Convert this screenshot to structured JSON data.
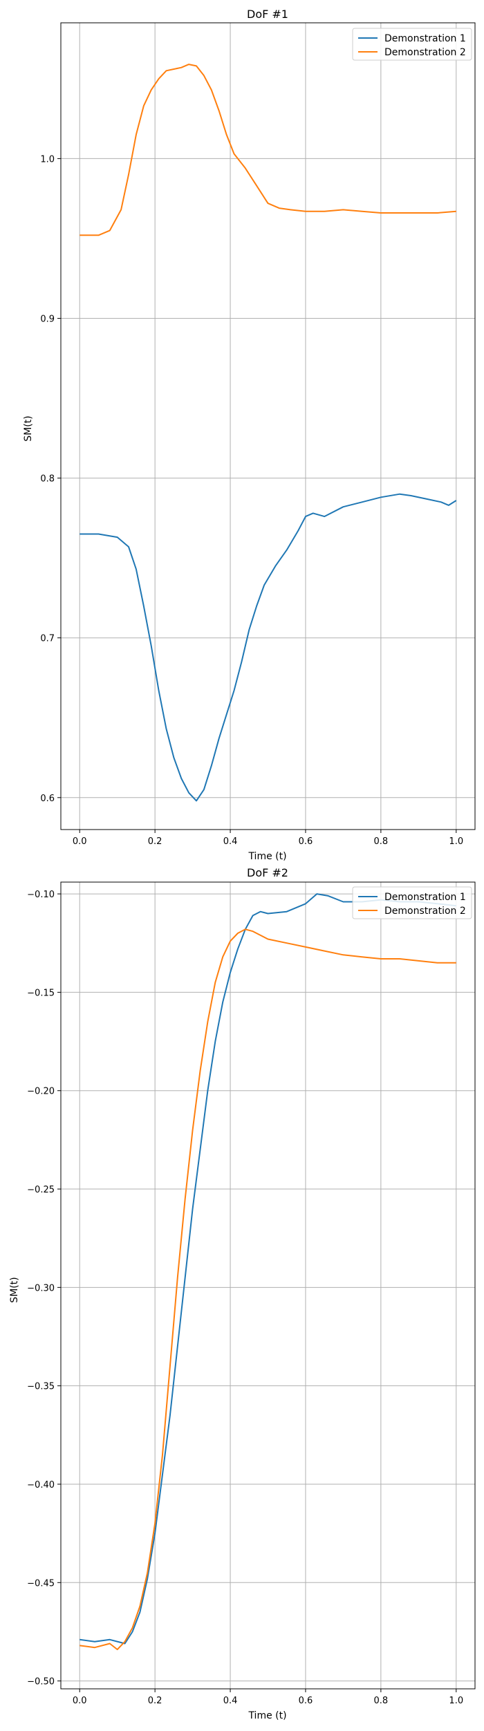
{
  "chart_data": [
    {
      "type": "line",
      "title": "DoF #1",
      "xlabel": "Time (t)",
      "ylabel": "SM(t)",
      "xlim": [
        -0.05,
        1.05
      ],
      "ylim": [
        0.58,
        1.085
      ],
      "xticks": [
        0.0,
        0.2,
        0.4,
        0.6,
        0.8,
        1.0
      ],
      "xtick_labels": [
        "0.0",
        "0.2",
        "0.4",
        "0.6",
        "0.8",
        "1.0"
      ],
      "yticks": [
        0.6,
        0.7,
        0.8,
        0.9,
        1.0
      ],
      "ytick_labels": [
        "0.6",
        "0.7",
        "0.8",
        "0.9",
        "1.0"
      ],
      "grid": true,
      "legend_position": "top-right",
      "series": [
        {
          "name": "Demonstration 1",
          "color": "#1f77b4",
          "x": [
            0.0,
            0.05,
            0.1,
            0.13,
            0.15,
            0.17,
            0.19,
            0.21,
            0.23,
            0.25,
            0.27,
            0.29,
            0.31,
            0.33,
            0.35,
            0.37,
            0.39,
            0.41,
            0.43,
            0.45,
            0.47,
            0.49,
            0.52,
            0.55,
            0.58,
            0.6,
            0.62,
            0.65,
            0.7,
            0.75,
            0.8,
            0.85,
            0.88,
            0.92,
            0.96,
            0.98,
            1.0
          ],
          "y": [
            0.765,
            0.765,
            0.763,
            0.757,
            0.743,
            0.72,
            0.695,
            0.667,
            0.643,
            0.625,
            0.612,
            0.603,
            0.598,
            0.605,
            0.62,
            0.637,
            0.652,
            0.667,
            0.685,
            0.705,
            0.72,
            0.733,
            0.745,
            0.755,
            0.767,
            0.776,
            0.778,
            0.776,
            0.782,
            0.785,
            0.788,
            0.79,
            0.789,
            0.787,
            0.785,
            0.783,
            0.786
          ]
        },
        {
          "name": "Demonstration 2",
          "color": "#ff7f0e",
          "x": [
            0.0,
            0.05,
            0.08,
            0.11,
            0.13,
            0.15,
            0.17,
            0.19,
            0.21,
            0.23,
            0.25,
            0.27,
            0.29,
            0.31,
            0.33,
            0.35,
            0.37,
            0.39,
            0.41,
            0.44,
            0.47,
            0.5,
            0.53,
            0.56,
            0.6,
            0.65,
            0.7,
            0.75,
            0.8,
            0.85,
            0.9,
            0.95,
            1.0
          ],
          "y": [
            0.952,
            0.952,
            0.955,
            0.968,
            0.99,
            1.015,
            1.033,
            1.043,
            1.05,
            1.055,
            1.056,
            1.057,
            1.059,
            1.058,
            1.052,
            1.043,
            1.03,
            1.015,
            1.003,
            0.994,
            0.983,
            0.972,
            0.969,
            0.968,
            0.967,
            0.967,
            0.968,
            0.967,
            0.966,
            0.966,
            0.966,
            0.966,
            0.967
          ]
        }
      ]
    },
    {
      "type": "line",
      "title": "DoF #2",
      "xlabel": "Time (t)",
      "ylabel": "SM(t)",
      "xlim": [
        -0.05,
        1.05
      ],
      "ylim": [
        -0.504,
        -0.094
      ],
      "xticks": [
        0.0,
        0.2,
        0.4,
        0.6,
        0.8,
        1.0
      ],
      "xtick_labels": [
        "0.0",
        "0.2",
        "0.4",
        "0.6",
        "0.8",
        "1.0"
      ],
      "yticks": [
        -0.5,
        -0.45,
        -0.4,
        -0.35,
        -0.3,
        -0.25,
        -0.2,
        -0.15,
        -0.1
      ],
      "ytick_labels": [
        "−0.50",
        "−0.45",
        "−0.40",
        "−0.35",
        "−0.30",
        "−0.25",
        "−0.20",
        "−0.15",
        "−0.10"
      ],
      "grid": true,
      "legend_position": "top-right",
      "series": [
        {
          "name": "Demonstration 1",
          "color": "#1f77b4",
          "x": [
            0.0,
            0.04,
            0.08,
            0.12,
            0.14,
            0.16,
            0.18,
            0.2,
            0.22,
            0.24,
            0.26,
            0.28,
            0.3,
            0.32,
            0.34,
            0.36,
            0.38,
            0.4,
            0.42,
            0.44,
            0.46,
            0.48,
            0.5,
            0.55,
            0.6,
            0.63,
            0.66,
            0.7,
            0.75,
            0.8,
            0.85,
            0.9,
            0.95,
            1.0
          ],
          "y": [
            -0.479,
            -0.48,
            -0.479,
            -0.481,
            -0.475,
            -0.465,
            -0.448,
            -0.425,
            -0.395,
            -0.365,
            -0.33,
            -0.295,
            -0.26,
            -0.23,
            -0.2,
            -0.175,
            -0.155,
            -0.14,
            -0.128,
            -0.118,
            -0.111,
            -0.109,
            -0.11,
            -0.109,
            -0.105,
            -0.1,
            -0.101,
            -0.104,
            -0.104,
            -0.103,
            -0.104,
            -0.104,
            -0.105,
            -0.106
          ]
        },
        {
          "name": "Demonstration 2",
          "color": "#ff7f0e",
          "x": [
            0.0,
            0.04,
            0.08,
            0.1,
            0.12,
            0.14,
            0.16,
            0.18,
            0.2,
            0.22,
            0.24,
            0.26,
            0.28,
            0.3,
            0.32,
            0.34,
            0.36,
            0.38,
            0.4,
            0.42,
            0.44,
            0.46,
            0.48,
            0.5,
            0.55,
            0.6,
            0.65,
            0.7,
            0.75,
            0.8,
            0.85,
            0.9,
            0.95,
            1.0
          ],
          "y": [
            -0.482,
            -0.483,
            -0.481,
            -0.484,
            -0.48,
            -0.473,
            -0.462,
            -0.445,
            -0.42,
            -0.385,
            -0.34,
            -0.295,
            -0.255,
            -0.22,
            -0.19,
            -0.165,
            -0.145,
            -0.132,
            -0.124,
            -0.12,
            -0.118,
            -0.119,
            -0.121,
            -0.123,
            -0.125,
            -0.127,
            -0.129,
            -0.131,
            -0.132,
            -0.133,
            -0.133,
            -0.134,
            -0.135,
            -0.135
          ]
        }
      ]
    }
  ]
}
